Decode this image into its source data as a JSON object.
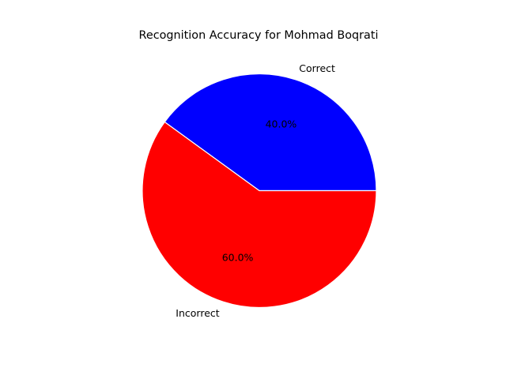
{
  "chart_data": {
    "type": "pie",
    "title": "Recognition Accuracy for Mohmad Boqrati",
    "slices": [
      {
        "label": "Correct",
        "value": 40.0,
        "percent_label": "40.0%",
        "color": "#0000ff"
      },
      {
        "label": "Incorrect",
        "value": 60.0,
        "percent_label": "60.0%",
        "color": "#ff0000"
      }
    ],
    "start_angle_deg": 0,
    "direction": "counterclockwise",
    "edge_color": "#ffffff"
  }
}
